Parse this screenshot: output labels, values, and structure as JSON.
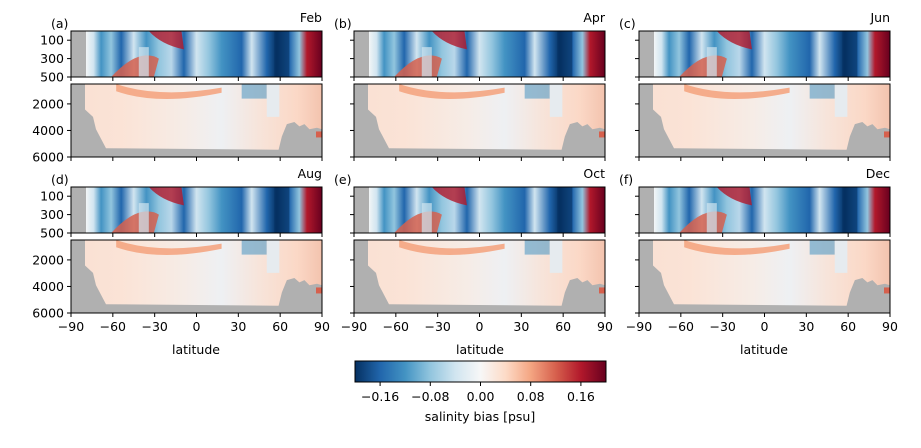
{
  "chart_data": {
    "type": "heatmap",
    "panels": [
      {
        "letter": "(a)",
        "month": "Feb"
      },
      {
        "letter": "(b)",
        "month": "Apr"
      },
      {
        "letter": "(c)",
        "month": "Jun"
      },
      {
        "letter": "(d)",
        "month": "Aug"
      },
      {
        "letter": "(e)",
        "month": "Oct"
      },
      {
        "letter": "(f)",
        "month": "Dec"
      }
    ],
    "xlabel": "latitude",
    "xlim": [
      -90,
      90
    ],
    "xticks": [
      "−90",
      "−60",
      "−30",
      "0",
      "30",
      "60",
      "90"
    ],
    "ylim_upper": [
      500,
      0
    ],
    "yticks_upper": [
      "100",
      "300",
      "500"
    ],
    "ylim_lower": [
      6000,
      500
    ],
    "yticks_lower": [
      "2000",
      "4000",
      "6000"
    ],
    "colorbar": {
      "label": "salinity bias [psu]",
      "range": [
        -0.2,
        0.2
      ],
      "ticks": [
        "−0.16",
        "−0.08",
        "0.00",
        "0.08",
        "0.16"
      ],
      "colormap": "RdBu_r"
    },
    "colors": {
      "land": "#b0b0b0"
    }
  }
}
